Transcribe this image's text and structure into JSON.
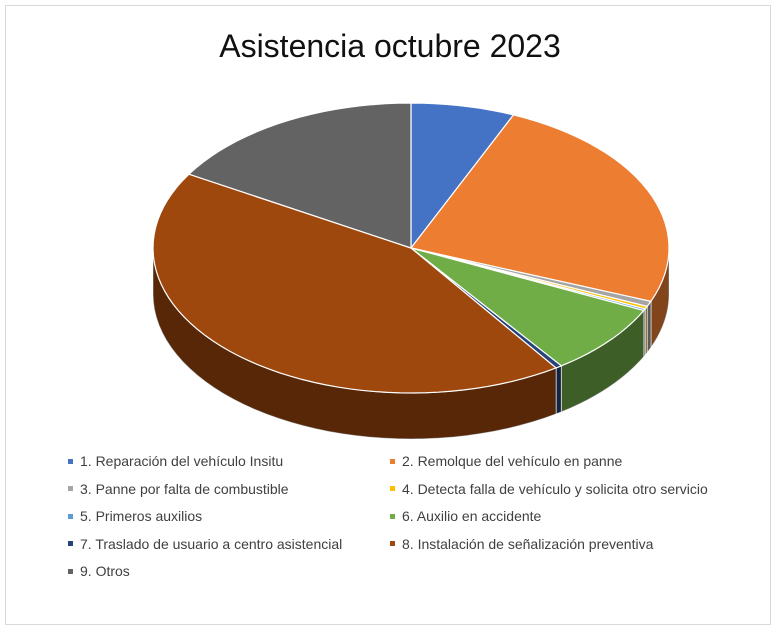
{
  "chart_data": {
    "type": "pie",
    "title": "Asistencia octubre 2023",
    "legend_position": "bottom",
    "three_d": true,
    "categories": [
      "1. Reparación del vehículo Insitu",
      "2. Remolque del vehículo en panne",
      "3. Panne por falta de combustible",
      "4. Detecta falla de vehículo y solicita otro servicio",
      "5. Primeros auxilios",
      "6. Auxilio en accidente",
      "7. Traslado de usuario a centro asistencial",
      "8. Instalación de señalización preventiva",
      "9. Otros"
    ],
    "values": [
      6.5,
      24.5,
      0.6,
      0.3,
      0.2,
      8.0,
      0.4,
      43.0,
      16.5
    ],
    "colors": [
      "#4472c4",
      "#ed7d31",
      "#a5a5a5",
      "#ffc000",
      "#5b9bd5",
      "#70ad47",
      "#264478",
      "#9e480e",
      "#636363"
    ]
  }
}
